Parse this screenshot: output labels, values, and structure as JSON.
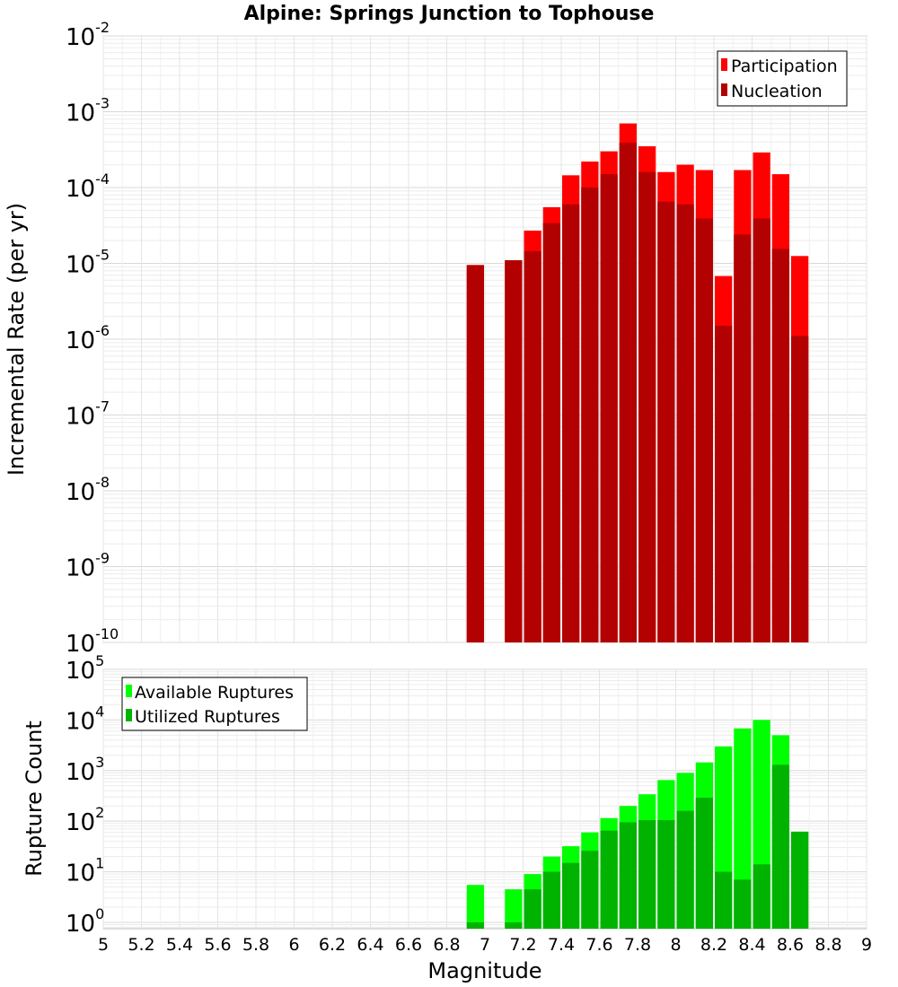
{
  "figure": {
    "title": "Alpine: Springs Junction to Tophouse"
  },
  "chart_data": [
    {
      "type": "bar",
      "ylabel": "Incremental Rate (per yr)",
      "xlabel": "",
      "xlim": [
        5,
        9
      ],
      "ylim": [
        1e-10,
        0.01
      ],
      "yscale": "log",
      "ytick_exponents": [
        "-10",
        "-9",
        "-8",
        "-7",
        "-6",
        "-5",
        "-4",
        "-3",
        "-2"
      ],
      "grid": true,
      "legend_position": "top-right",
      "bar_width": 0.1,
      "x": [
        6.95,
        7.15,
        7.25,
        7.35,
        7.45,
        7.55,
        7.65,
        7.75,
        7.85,
        7.95,
        8.05,
        8.15,
        8.25,
        8.35,
        8.45,
        8.55,
        8.65
      ],
      "series": [
        {
          "name": "Participation",
          "color": "#ff0000",
          "values": [
            9.5e-06,
            1.1e-05,
            2.7e-05,
            5.5e-05,
            0.000145,
            0.00022,
            0.0003,
            0.0007,
            0.00035,
            0.00016,
            0.0002,
            0.00017,
            6.8e-06,
            0.00017,
            0.00029,
            0.00015,
            1.25e-05
          ]
        },
        {
          "name": "Nucleation",
          "color": "#b30000",
          "values": [
            9.5e-06,
            1.1e-05,
            1.45e-05,
            3.4e-05,
            6e-05,
            0.0001,
            0.00015,
            0.00039,
            0.00016,
            6.5e-05,
            6e-05,
            3.9e-05,
            1.5e-06,
            2.4e-05,
            3.9e-05,
            1.55e-05,
            1.1e-06
          ]
        }
      ]
    },
    {
      "type": "bar",
      "ylabel": "Rupture Count",
      "xlabel": "Magnitude",
      "xlim": [
        5,
        9
      ],
      "ylim": [
        0.75,
        100000.0
      ],
      "yscale": "log",
      "ytick_exponents": [
        "0",
        "1",
        "2",
        "3",
        "4",
        "5"
      ],
      "xticks": [
        "5",
        "5.2",
        "5.4",
        "5.6",
        "5.8",
        "6",
        "6.2",
        "6.4",
        "6.6",
        "6.8",
        "7",
        "7.2",
        "7.4",
        "7.6",
        "7.8",
        "8",
        "8.2",
        "8.4",
        "8.6",
        "8.8",
        "9"
      ],
      "grid": true,
      "legend_position": "top-left",
      "bar_width": 0.1,
      "x": [
        6.95,
        7.15,
        7.25,
        7.35,
        7.45,
        7.55,
        7.65,
        7.75,
        7.85,
        7.95,
        8.05,
        8.15,
        8.25,
        8.35,
        8.45,
        8.55,
        8.65
      ],
      "series": [
        {
          "name": "Available Ruptures",
          "color": "#00ff00",
          "values": [
            5.5,
            4.5,
            9,
            20,
            32,
            60,
            115,
            200,
            340,
            650,
            900,
            1450,
            3000,
            6800,
            10000,
            5000,
            62
          ]
        },
        {
          "name": "Utilized Ruptures",
          "color": "#00b300",
          "values": [
            1,
            1,
            4.5,
            10,
            15,
            26,
            65,
            95,
            105,
            105,
            160,
            290,
            10,
            7,
            14,
            1300,
            62
          ]
        }
      ]
    }
  ]
}
